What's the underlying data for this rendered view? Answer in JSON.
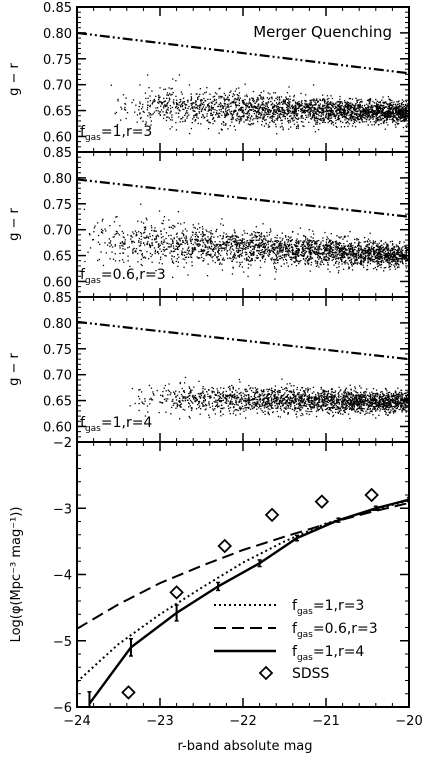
{
  "chart_data": [
    {
      "type": "scatter",
      "annotation": "Merger Quenching",
      "ylabel": "g − r",
      "ylim": [
        0.57,
        0.85
      ],
      "xlim": [
        -24,
        -20
      ],
      "yticks": [
        "0.60",
        "0.65",
        "0.70",
        "0.75",
        "0.80",
        "0.85"
      ],
      "label_main": "f",
      "label_sub": "gas",
      "label_rest": "=1,r=3",
      "cut_line": {
        "x": [
          -24,
          -20
        ],
        "y": [
          0.8,
          0.722
        ]
      },
      "scatter_band": {
        "x_start": -23.6,
        "x_end": -20,
        "ymid_start": 0.66,
        "ymid_end": 0.647,
        "spread_start": 0.02,
        "spread_end": 0.01,
        "points": 2600,
        "seed": 11
      }
    },
    {
      "type": "scatter",
      "ylabel": "g − r",
      "ylim": [
        0.57,
        0.85
      ],
      "xlim": [
        -24,
        -20
      ],
      "yticks": [
        "0.60",
        "0.65",
        "0.70",
        "0.75",
        "0.80",
        "0.85"
      ],
      "label_main": "f",
      "label_sub": "gas",
      "label_rest": "=0.6,r=3",
      "cut_line": {
        "x": [
          -24,
          -20
        ],
        "y": [
          0.797,
          0.725
        ]
      },
      "scatter_band": {
        "x_start": -24,
        "x_end": -20,
        "ymid_start": 0.685,
        "ymid_end": 0.65,
        "spread_start": 0.025,
        "spread_end": 0.01,
        "points": 2600,
        "seed": 23
      }
    },
    {
      "type": "scatter",
      "ylabel": "g − r",
      "ylim": [
        0.57,
        0.85
      ],
      "xlim": [
        -24,
        -20
      ],
      "yticks": [
        "0.60",
        "0.65",
        "0.70",
        "0.75",
        "0.80",
        "0.85"
      ],
      "label_main": "f",
      "label_sub": "gas",
      "label_rest": "=1,r=4",
      "cut_line": {
        "x": [
          -24,
          -20
        ],
        "y": [
          0.802,
          0.73
        ]
      },
      "scatter_band": {
        "x_start": -23.4,
        "x_end": -20,
        "ymid_start": 0.655,
        "ymid_end": 0.648,
        "spread_start": 0.015,
        "spread_end": 0.01,
        "points": 2200,
        "seed": 37
      }
    },
    {
      "type": "line",
      "ylabel": "Log(φ(Mpc⁻³ mag⁻¹))",
      "xlabel": "r-band absolute mag",
      "xlim": [
        -24,
        -20
      ],
      "ylim": [
        -6,
        -2
      ],
      "xticks": [
        "−24",
        "−23",
        "−22",
        "−21",
        "−20"
      ],
      "yticks": [
        "−6",
        "−5",
        "−4",
        "−3",
        "−2"
      ],
      "series": [
        {
          "name_main": "f",
          "name_sub": "gas",
          "name_rest": "=1,r=3",
          "style": "dotted",
          "x": [
            -24,
            -23.5,
            -23,
            -22.5,
            -22,
            -21.5,
            -21,
            -20.5,
            -20
          ],
          "y": [
            -5.62,
            -5.05,
            -4.6,
            -4.2,
            -3.82,
            -3.5,
            -3.23,
            -3.05,
            -2.88
          ]
        },
        {
          "name_main": "f",
          "name_sub": "gas",
          "name_rest": "=0.6,r=3",
          "style": "dashed",
          "x": [
            -24,
            -23.5,
            -23,
            -22.5,
            -22,
            -21.5,
            -21,
            -20.5,
            -20
          ],
          "y": [
            -4.82,
            -4.45,
            -4.13,
            -3.87,
            -3.63,
            -3.43,
            -3.24,
            -3.07,
            -2.92
          ]
        },
        {
          "name_main": "f",
          "name_sub": "gas",
          "name_rest": "=1,r=4",
          "style": "solid",
          "x": [
            -23.85,
            -23.35,
            -22.8,
            -22.3,
            -21.8,
            -21.35,
            -20.85,
            -20.4,
            -20
          ],
          "y": [
            -5.95,
            -5.1,
            -4.58,
            -4.18,
            -3.83,
            -3.45,
            -3.18,
            -3.0,
            -2.87
          ],
          "err": [
            0.18,
            0.13,
            0.12,
            0.06,
            0.05,
            0.04,
            0.03,
            0.03,
            0.03
          ]
        },
        {
          "name": "SDSS",
          "style": "diamond",
          "x": [
            -23.38,
            -22.8,
            -22.22,
            -21.65,
            -21.05,
            -20.45
          ],
          "y": [
            -5.78,
            -4.27,
            -3.57,
            -3.1,
            -2.9,
            -2.8
          ]
        }
      ]
    }
  ]
}
